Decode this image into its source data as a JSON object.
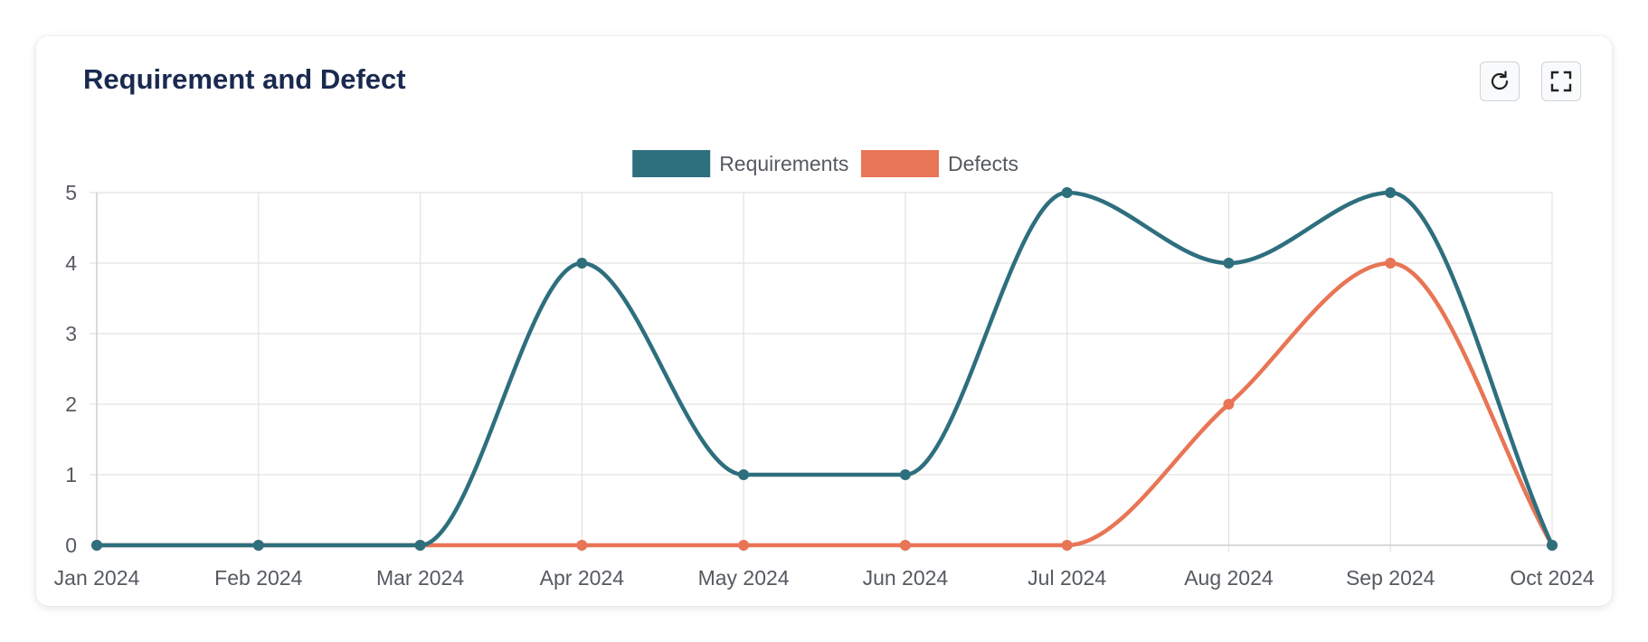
{
  "card": {
    "title": "Requirement and Defect",
    "refresh_icon": "refresh-icon",
    "fullscreen_icon": "fullscreen-icon"
  },
  "chart_data": {
    "type": "line",
    "categories": [
      "Jan 2024",
      "Feb 2024",
      "Mar 2024",
      "Apr 2024",
      "May 2024",
      "Jun 2024",
      "Jul 2024",
      "Aug 2024",
      "Sep 2024",
      "Oct 2024"
    ],
    "series": [
      {
        "name": "Requirements",
        "color": "#2e6f7e",
        "values": [
          0,
          0,
          0,
          4,
          1,
          1,
          5,
          4,
          5,
          0
        ]
      },
      {
        "name": "Defects",
        "color": "#e87555",
        "values": [
          0,
          0,
          0,
          0,
          0,
          0,
          0,
          2,
          4,
          0
        ]
      }
    ],
    "ylim": [
      0,
      5
    ],
    "yticks": [
      "0",
      "1",
      "2",
      "3",
      "4",
      "5"
    ],
    "grid": true,
    "legend": "top-center",
    "curve": "smooth"
  }
}
